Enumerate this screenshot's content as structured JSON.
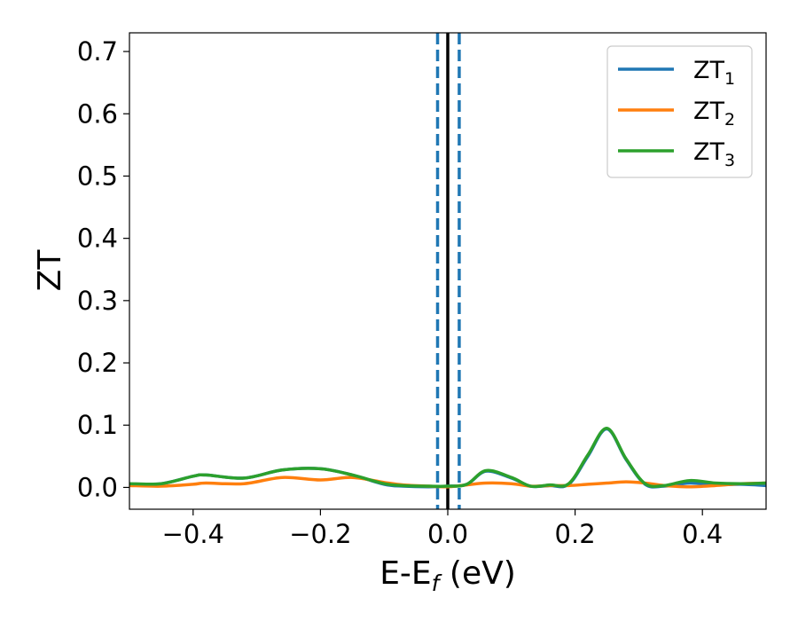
{
  "chart_data": {
    "type": "line",
    "xlabel_main": "E-E",
    "xlabel_sub": "f",
    "xlabel_tail": " (eV)",
    "ylabel": "ZT",
    "xlim": [
      -0.5,
      0.5
    ],
    "ylim": [
      -0.035,
      0.73
    ],
    "grid": false,
    "legend_placement": "top-right",
    "xticks": [
      -0.4,
      -0.2,
      0.0,
      0.2,
      0.4
    ],
    "xtick_labels": [
      "−0.4",
      "−0.2",
      "0.0",
      "0.2",
      "0.4"
    ],
    "yticks": [
      0.0,
      0.1,
      0.2,
      0.3,
      0.4,
      0.5,
      0.6,
      0.7
    ],
    "ytick_labels": [
      "0.0",
      "0.1",
      "0.2",
      "0.3",
      "0.4",
      "0.5",
      "0.6",
      "0.7"
    ],
    "vlines": [
      {
        "x": 0.0,
        "style": "solid",
        "color": "#000000"
      },
      {
        "x": -0.016,
        "style": "dashed",
        "color": "#1f77b4"
      },
      {
        "x": 0.018,
        "style": "dashed",
        "color": "#1f77b4"
      }
    ],
    "x": [
      -0.5,
      -0.45,
      -0.4,
      -0.38,
      -0.32,
      -0.26,
      -0.2,
      -0.15,
      -0.1,
      -0.07,
      -0.03,
      0.0,
      0.03,
      0.06,
      0.1,
      0.13,
      0.16,
      0.19,
      0.22,
      0.25,
      0.28,
      0.31,
      0.34,
      0.38,
      0.42,
      0.46,
      0.5
    ],
    "series": [
      {
        "name": "ZT",
        "sub": "1",
        "color": "#1f77b4",
        "values": [
          0.005,
          0.006,
          0.018,
          0.02,
          0.015,
          0.028,
          0.03,
          0.02,
          0.005,
          0.002,
          0.001,
          0.002,
          0.005,
          0.026,
          0.015,
          0.002,
          0.003,
          0.005,
          0.05,
          0.094,
          0.045,
          0.005,
          0.002,
          0.007,
          0.004,
          0.005,
          0.003
        ]
      },
      {
        "name": "ZT",
        "sub": "2",
        "color": "#ff7f0e",
        "values": [
          0.003,
          0.002,
          0.005,
          0.007,
          0.006,
          0.016,
          0.012,
          0.016,
          0.008,
          0.004,
          0.002,
          0.001,
          0.004,
          0.007,
          0.006,
          0.002,
          0.003,
          0.003,
          0.005,
          0.007,
          0.009,
          0.007,
          0.003,
          0.001,
          0.003,
          0.006,
          0.007
        ]
      },
      {
        "name": "ZT",
        "sub": "3",
        "color": "#2ca02c",
        "values": [
          0.006,
          0.006,
          0.018,
          0.02,
          0.015,
          0.028,
          0.03,
          0.02,
          0.006,
          0.003,
          0.002,
          0.002,
          0.005,
          0.027,
          0.016,
          0.002,
          0.004,
          0.006,
          0.052,
          0.095,
          0.046,
          0.006,
          0.003,
          0.011,
          0.007,
          0.006,
          0.007
        ]
      }
    ]
  }
}
